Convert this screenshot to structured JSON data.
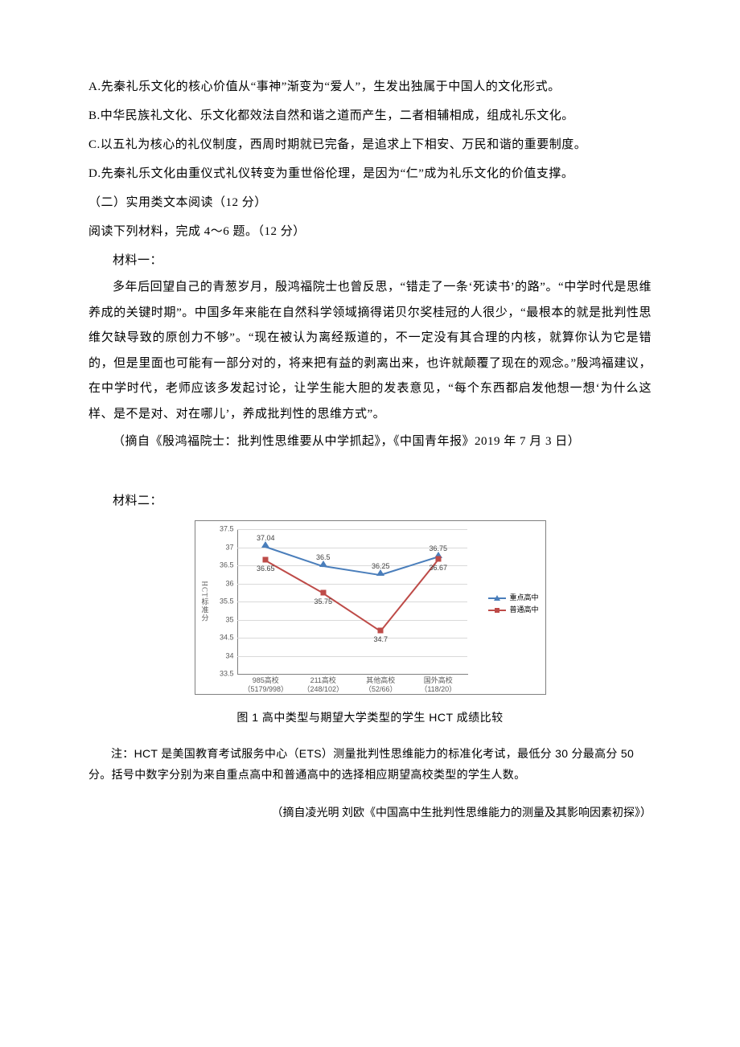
{
  "options": {
    "A": "A.先秦礼乐文化的核心价值从“事神”渐变为“爱人”，生发出独属于中国人的文化形式。",
    "B": "B.中华民族礼文化、乐文化都效法自然和谐之道而产生，二者相辅相成，组成礼乐文化。",
    "C": "C.以五礼为核心的礼仪制度，西周时期就已完备，是追求上下相安、万民和谐的重要制度。",
    "D": "D.先秦礼乐文化由重仪式礼仪转变为重世俗伦理，是因为“仁”成为礼乐文化的价值支撑。"
  },
  "section_header": "（二）实用类文本阅读（12 分）",
  "instruction": "阅读下列材料，完成 4～6 题。（12 分）",
  "material1": {
    "label": "材料一：",
    "p1": "多年后回望自己的青葱岁月，殷鸿福院士也曾反思，“错走了一条‘死读书’的路”。“中学时代是思维养成的关键时期”。中国多年来能在自然科学领域摘得诺贝尔奖桂冠的人很少，“最根本的就是批判性思维欠缺导致的原创力不够”。“现在被认为离经叛道的，不一定没有其合理的内核，就算你认为它是错的，但是里面也可能有一部分对的，将来把有益的剥离出来，也许就颠覆了现在的观念。”殷鸿福建议，在中学时代，老师应该多发起讨论，让学生能大胆的发表意见，“每个东西都启发他想一想‘为什么这样、是不是对、对在哪儿’，养成批判性的思维方式”。",
    "source": "（摘自《殷鸿福院士：批判性思维要从中学抓起》，《中国青年报》2019 年 7 月 3 日）"
  },
  "material2": {
    "label": "材料二：",
    "chart": {
      "type": "line",
      "y_axis_title": "HCT标准分",
      "ylim": [
        33.5,
        37.5
      ],
      "ytick_step": 0.5,
      "yticks": [
        33.5,
        34,
        34.5,
        35,
        35.5,
        36,
        36.5,
        37,
        37.5
      ],
      "grid_color": "#d9d9d9",
      "border_color": "#808080",
      "background_color": "#ffffff",
      "label_fontsize": 9,
      "label_color": "#595959",
      "categories": [
        {
          "line1": "985高校",
          "line2": "（5179/998）"
        },
        {
          "line1": "211高校",
          "line2": "（248/102）"
        },
        {
          "line1": "其他高校",
          "line2": "（52/66）"
        },
        {
          "line1": "国外高校",
          "line2": "（118/20）"
        }
      ],
      "series": [
        {
          "name": "重点高中",
          "color": "#4a7ebb",
          "marker": "triangle",
          "values": [
            37.04,
            36.5,
            36.25,
            36.75
          ],
          "label_position": [
            "above",
            "above",
            "above",
            "above"
          ]
        },
        {
          "name": "普通高中",
          "color": "#be4b48",
          "marker": "square",
          "values": [
            36.65,
            35.75,
            34.7,
            36.67
          ],
          "label_position": [
            "below",
            "below",
            "below",
            "below"
          ]
        }
      ],
      "legend_position": "right"
    },
    "caption": "图 1 高中类型与期望大学类型的学生 HCT 成绩比较",
    "note_p1": "注：HCT 是美国教育考试服务中心（ETS）测量批判性思维能力的标准化考试，最低分 30 分最高分 50 分。括号中数字分别为来自重点高中和普通高中的选择相应期望高校类型的学生人数。",
    "source": "（摘自凌光明  刘欧《中国高中生批判性思维能力的测量及其影响因素初探》）"
  }
}
